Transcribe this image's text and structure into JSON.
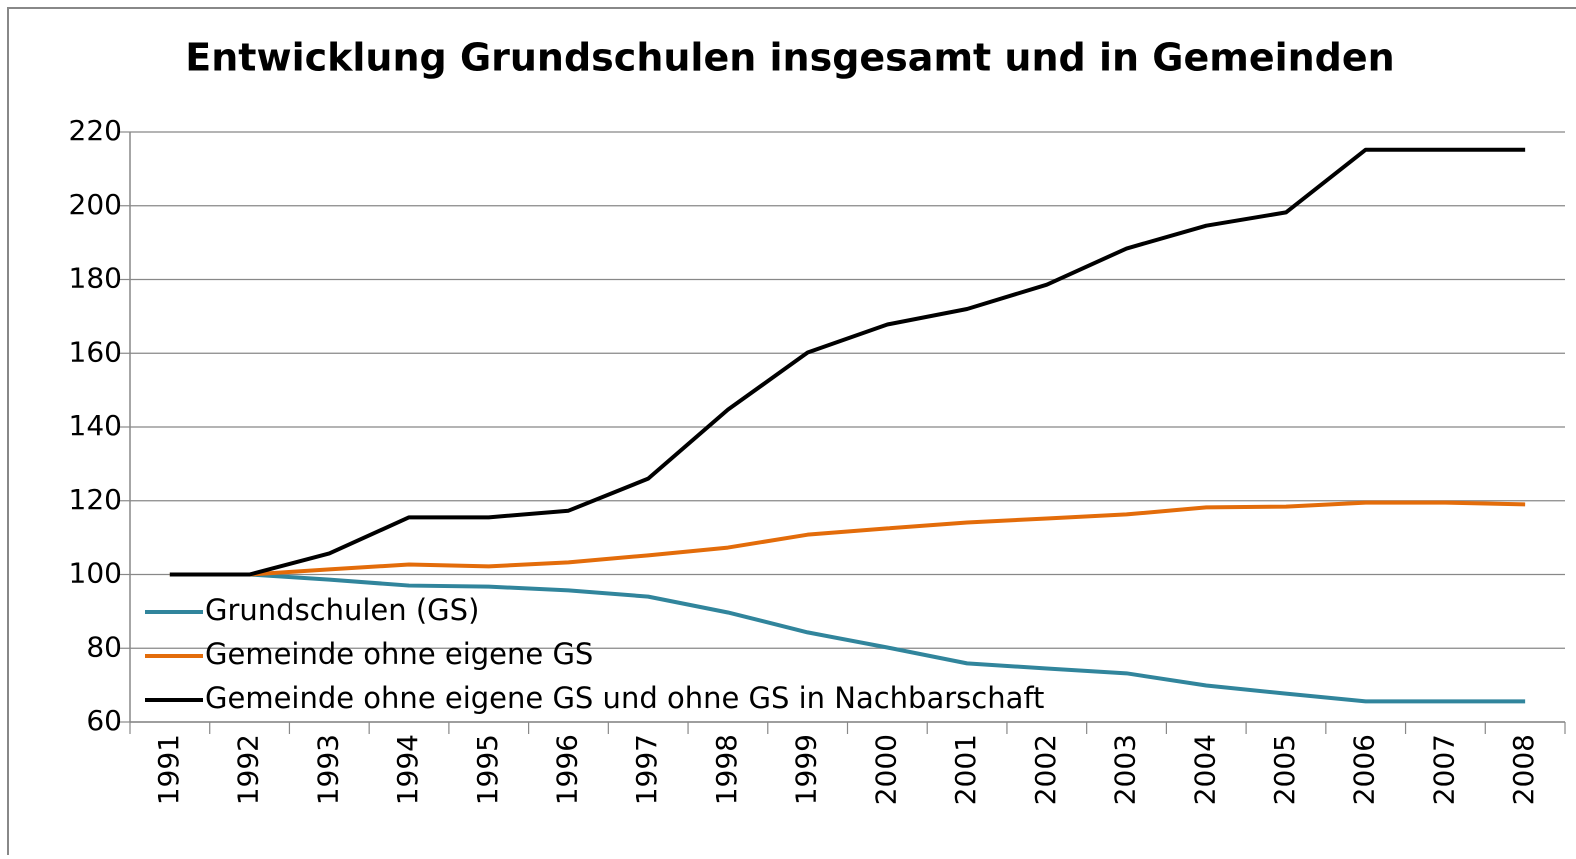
{
  "chart_data": {
    "type": "line",
    "title": "Entwicklung Grundschulen insgesamt und in Gemeinden",
    "categories": [
      "1991",
      "1992",
      "1993",
      "1994",
      "1995",
      "1996",
      "1997",
      "1998",
      "1999",
      "2000",
      "2001",
      "2002",
      "2003",
      "2004",
      "2005",
      "2006",
      "2007",
      "2008"
    ],
    "series": [
      {
        "name": "Grundschulen (GS)",
        "color": "#31859c",
        "values": [
          100,
          100,
          98.6,
          97,
          96.7,
          95.7,
          94,
          89.7,
          84.3,
          80.2,
          75.9,
          74.5,
          73.2,
          69.9,
          67.7,
          65.6,
          65.6,
          65.6
        ]
      },
      {
        "name": "Gemeinde ohne eigene GS",
        "color": "#e36c0a",
        "values": [
          100,
          100,
          101.4,
          102.7,
          102.2,
          103.3,
          105.2,
          107.3,
          110.8,
          112.5,
          114.1,
          115.2,
          116.3,
          118.2,
          118.4,
          119.5,
          119.5,
          119
        ]
      },
      {
        "name": "Gemeinde ohne eigene GS und ohne GS in Nachbarschaft",
        "color": "#000000",
        "values": [
          100,
          100,
          105.7,
          115.5,
          115.5,
          117.3,
          126,
          144.7,
          160.2,
          167.8,
          172,
          178.6,
          188.4,
          194.6,
          198.2,
          215.2,
          215.2,
          215.2
        ]
      }
    ],
    "ylim": [
      60,
      220
    ],
    "yticks": [
      60,
      80,
      100,
      120,
      140,
      160,
      180,
      200,
      220
    ],
    "grid": true,
    "legend": "lower left"
  }
}
